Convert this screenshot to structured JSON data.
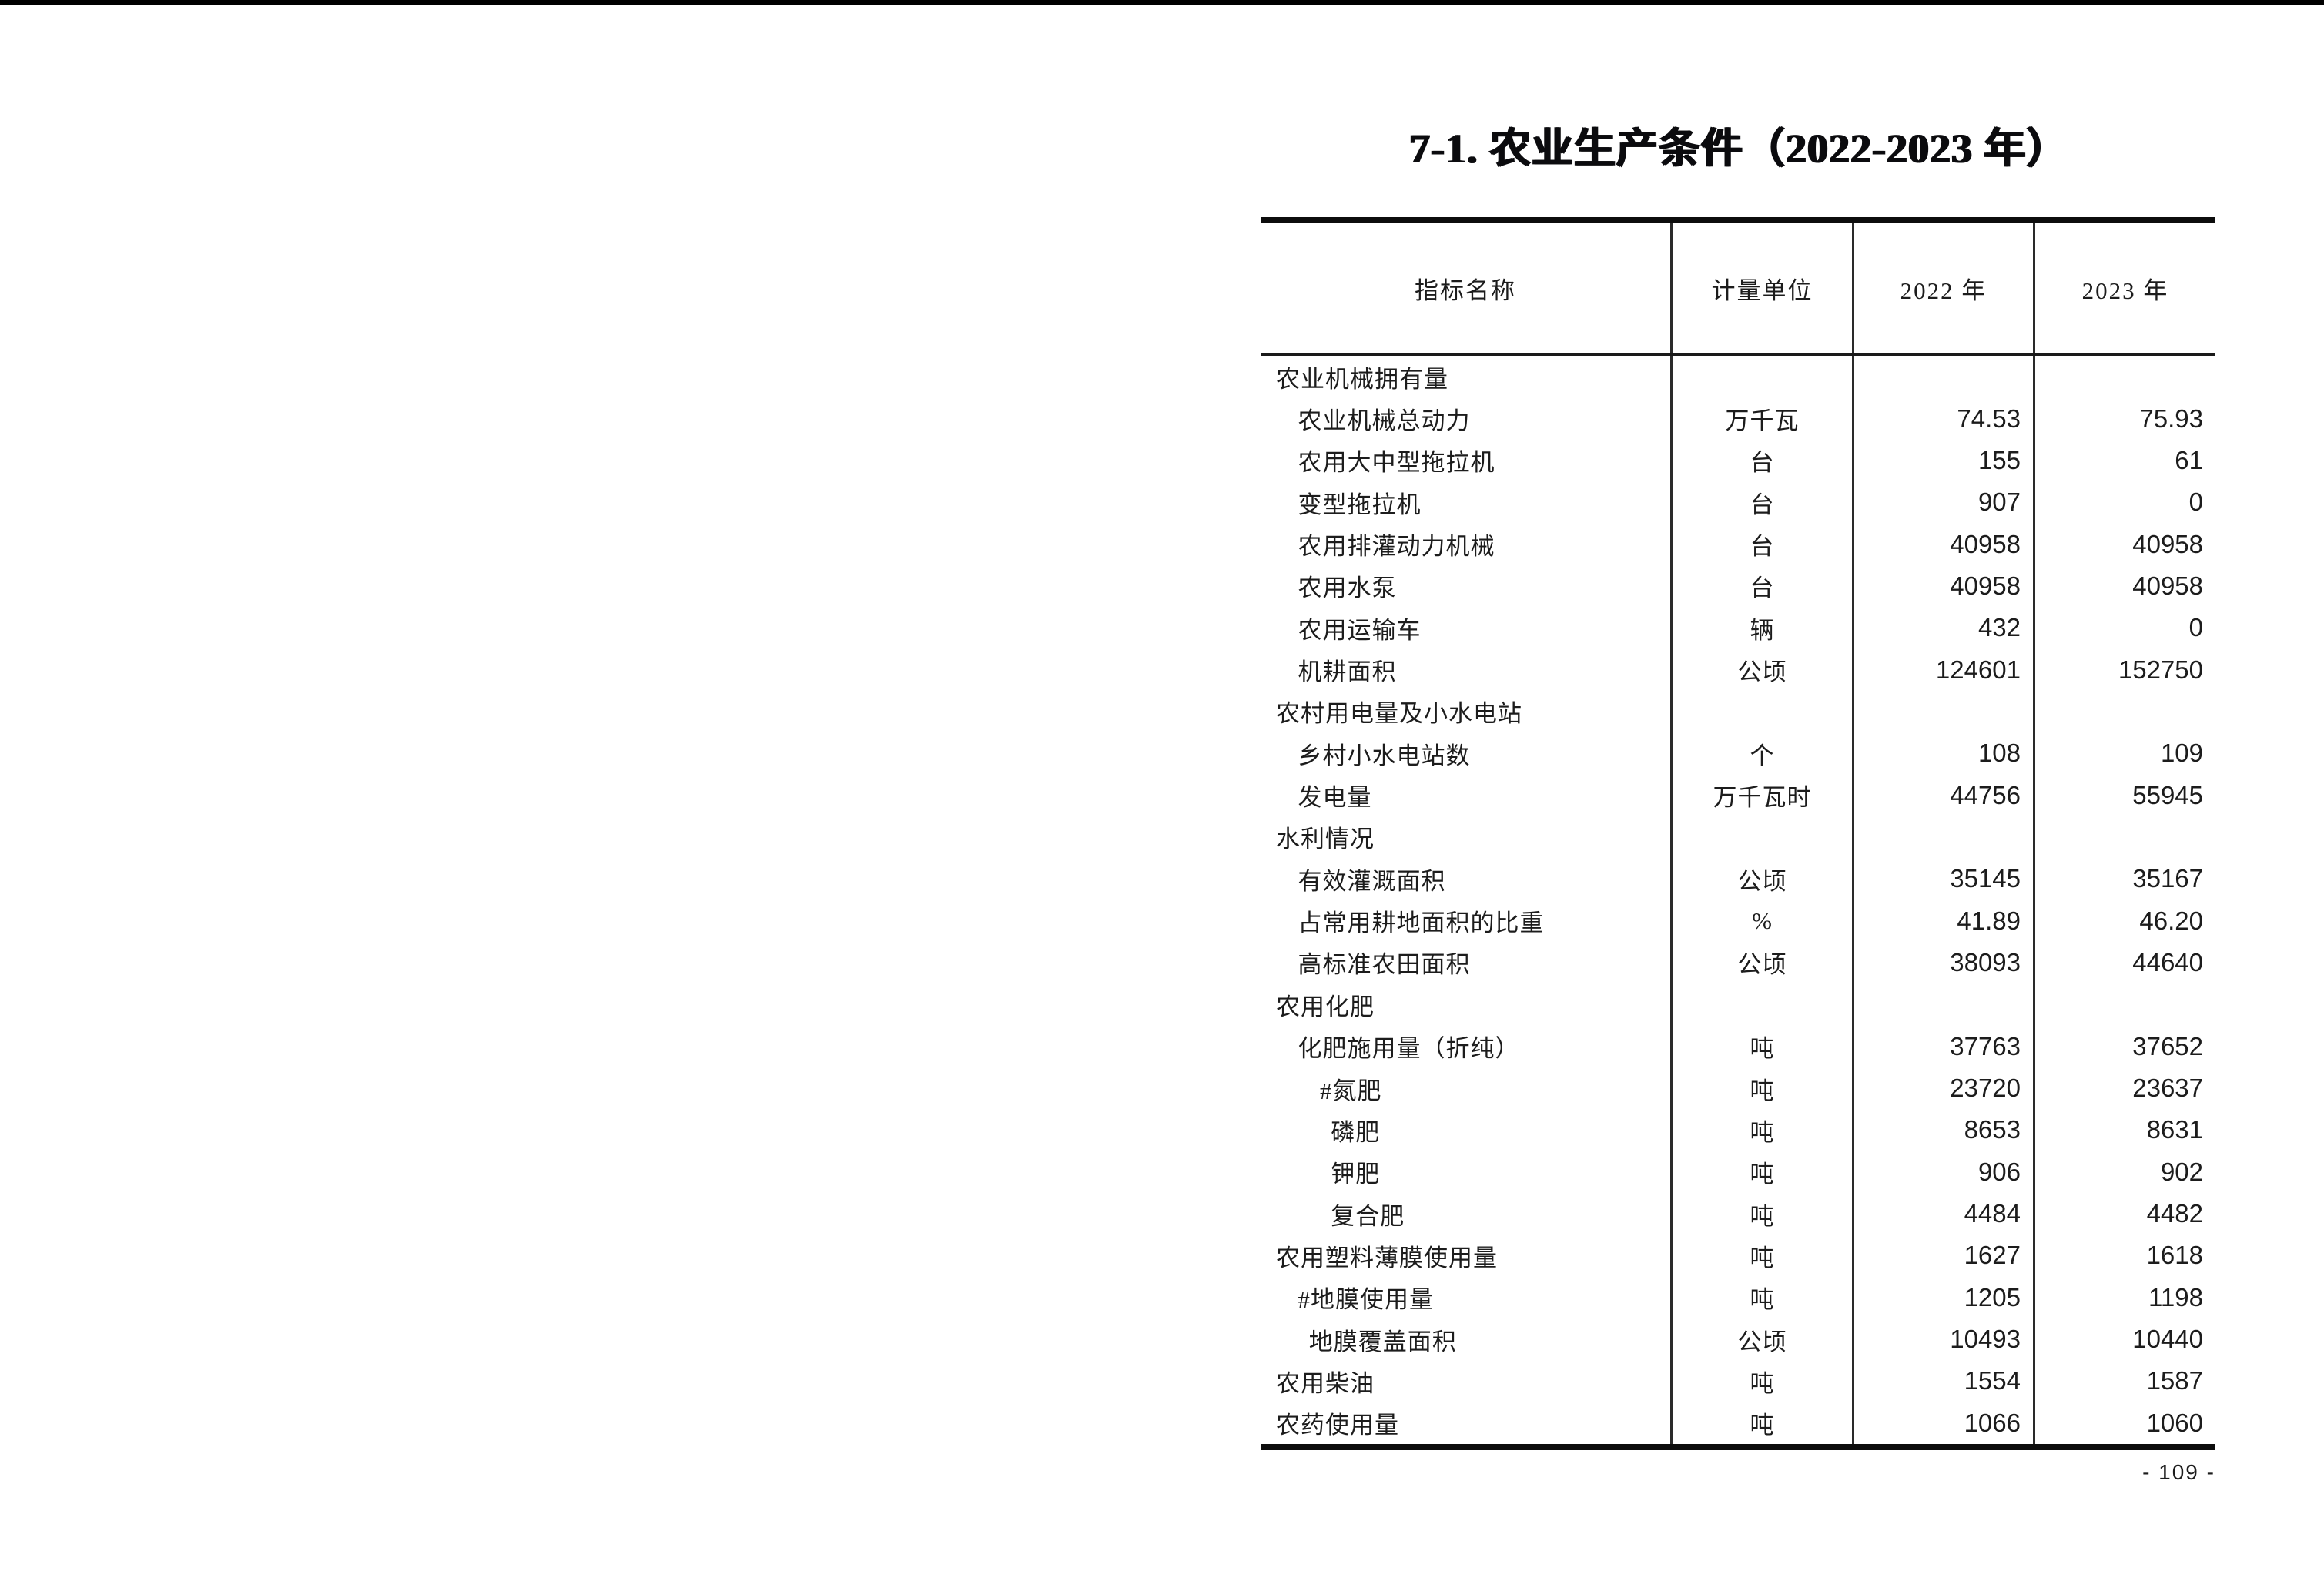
{
  "title": "7-1. 农业生产条件（2022-2023 年）",
  "page_number": "- 109 -",
  "table": {
    "headers": [
      "指标名称",
      "计量单位",
      "2022 年",
      "2023 年"
    ],
    "rows": [
      {
        "label": "农业机械拥有量",
        "indent": 0,
        "unit": "",
        "v2022": "",
        "v2023": ""
      },
      {
        "label": "农业机械总动力",
        "indent": 2,
        "unit": "万千瓦",
        "v2022": "74.53",
        "v2023": "75.93"
      },
      {
        "label": "农用大中型拖拉机",
        "indent": 2,
        "unit": "台",
        "v2022": "155",
        "v2023": "61"
      },
      {
        "label": "变型拖拉机",
        "indent": 2,
        "unit": "台",
        "v2022": "907",
        "v2023": "0"
      },
      {
        "label": "农用排灌动力机械",
        "indent": 2,
        "unit": "台",
        "v2022": "40958",
        "v2023": "40958"
      },
      {
        "label": "农用水泵",
        "indent": 2,
        "unit": "台",
        "v2022": "40958",
        "v2023": "40958"
      },
      {
        "label": "农用运输车",
        "indent": 2,
        "unit": "辆",
        "v2022": "432",
        "v2023": "0"
      },
      {
        "label": "机耕面积",
        "indent": 2,
        "unit": "公顷",
        "v2022": "124601",
        "v2023": "152750"
      },
      {
        "label": "农村用电量及小水电站",
        "indent": 0,
        "unit": "",
        "v2022": "",
        "v2023": ""
      },
      {
        "label": "乡村小水电站数",
        "indent": 2,
        "unit": "个",
        "v2022": "108",
        "v2023": "109"
      },
      {
        "label": "发电量",
        "indent": 2,
        "unit": "万千瓦时",
        "v2022": "44756",
        "v2023": "55945"
      },
      {
        "label": "水利情况",
        "indent": 0,
        "unit": "",
        "v2022": "",
        "v2023": ""
      },
      {
        "label": "有效灌溉面积",
        "indent": 2,
        "unit": "公顷",
        "v2022": "35145",
        "v2023": "35167"
      },
      {
        "label": "占常用耕地面积的比重",
        "indent": 2,
        "unit": "%",
        "v2022": "41.89",
        "v2023": "46.20"
      },
      {
        "label": "高标准农田面积",
        "indent": 2,
        "unit": "公顷",
        "v2022": "38093",
        "v2023": "44640"
      },
      {
        "label": "农用化肥",
        "indent": 0,
        "unit": "",
        "v2022": "",
        "v2023": ""
      },
      {
        "label": "化肥施用量（折纯）",
        "indent": 2,
        "unit": "吨",
        "v2022": "37763",
        "v2023": "37652"
      },
      {
        "label": "#氮肥",
        "indent": 4,
        "unit": "吨",
        "v2022": "23720",
        "v2023": "23637"
      },
      {
        "label": "磷肥",
        "indent": 5,
        "unit": "吨",
        "v2022": "8653",
        "v2023": "8631"
      },
      {
        "label": "钾肥",
        "indent": 5,
        "unit": "吨",
        "v2022": "906",
        "v2023": "902"
      },
      {
        "label": "复合肥",
        "indent": 5,
        "unit": "吨",
        "v2022": "4484",
        "v2023": "4482"
      },
      {
        "label": "农用塑料薄膜使用量",
        "indent": 0,
        "unit": "吨",
        "v2022": "1627",
        "v2023": "1618"
      },
      {
        "label": "#地膜使用量",
        "indent": 2,
        "unit": "吨",
        "v2022": "1205",
        "v2023": "1198"
      },
      {
        "label": "地膜覆盖面积",
        "indent": 3,
        "unit": "公顷",
        "v2022": "10493",
        "v2023": "10440"
      },
      {
        "label": "农用柴油",
        "indent": 0,
        "unit": "吨",
        "v2022": "1554",
        "v2023": "1587"
      },
      {
        "label": "农药使用量",
        "indent": 0,
        "unit": "吨",
        "v2022": "1066",
        "v2023": "1060"
      }
    ]
  }
}
